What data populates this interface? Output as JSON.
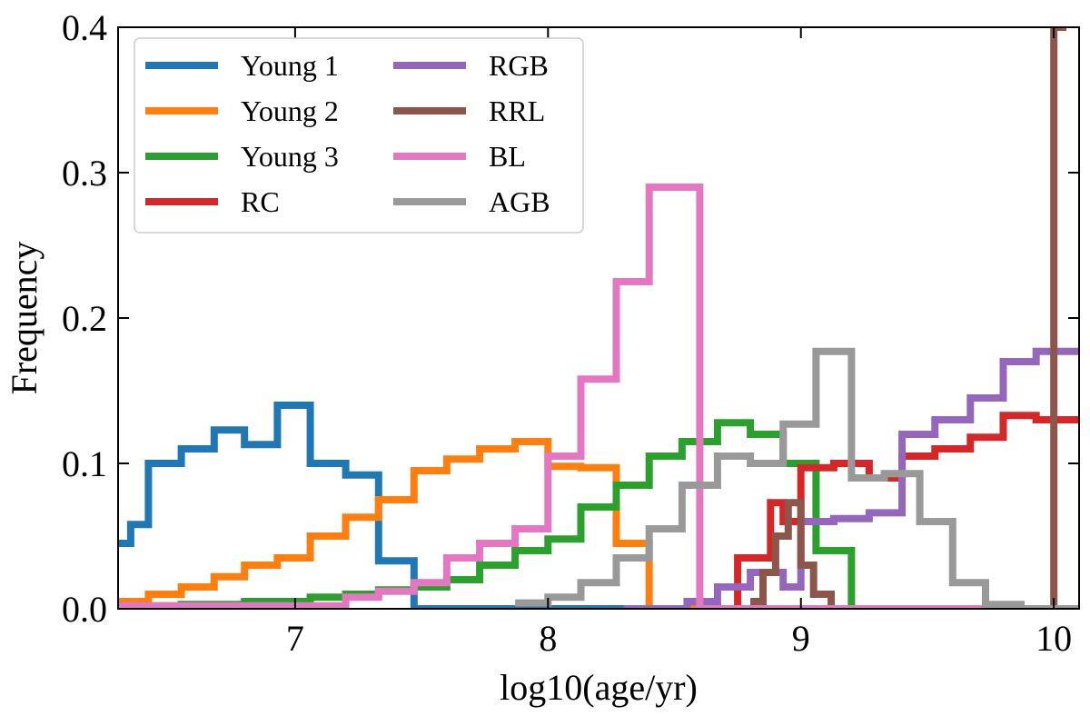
{
  "chart_data": {
    "type": "histogram-step",
    "xlabel": "log10(age/yr)",
    "ylabel": "Frequency",
    "xlim": [
      6.3,
      10.1
    ],
    "ylim": [
      0.0,
      0.4
    ],
    "xticks": [
      7,
      8,
      9,
      10
    ],
    "xtick_labels": [
      "7",
      "8",
      "9",
      "10"
    ],
    "yticks": [
      0.0,
      0.1,
      0.2,
      0.3,
      0.4
    ],
    "ytick_labels": [
      "0.0",
      "0.1",
      "0.2",
      "0.3",
      "0.4"
    ],
    "legend_position": "top-left",
    "series": [
      {
        "name": "Young 1",
        "color": "#1f77b4",
        "x": [
          6.3,
          6.35,
          6.42,
          6.55,
          6.68,
          6.8,
          6.93,
          7.06,
          7.2,
          7.33,
          7.47,
          7.6,
          7.73,
          8.6
        ],
        "y": [
          0.045,
          0.058,
          0.1,
          0.11,
          0.123,
          0.113,
          0.14,
          0.1,
          0.092,
          0.033,
          0.0,
          0.0,
          0.0
        ]
      },
      {
        "name": "Young 2",
        "color": "#ff7f0e",
        "x": [
          6.3,
          6.42,
          6.55,
          6.68,
          6.8,
          6.93,
          7.06,
          7.2,
          7.33,
          7.47,
          7.6,
          7.73,
          7.87,
          8.0,
          8.13,
          8.27,
          8.4,
          8.53,
          8.6
        ],
        "y": [
          0.005,
          0.01,
          0.015,
          0.022,
          0.03,
          0.035,
          0.05,
          0.063,
          0.075,
          0.095,
          0.103,
          0.11,
          0.115,
          0.098,
          0.097,
          0.045,
          0.0,
          0.0
        ]
      },
      {
        "name": "Young 3",
        "color": "#2ca02c",
        "x": [
          6.3,
          6.55,
          6.8,
          7.06,
          7.2,
          7.33,
          7.47,
          7.6,
          7.73,
          7.87,
          8.0,
          8.13,
          8.27,
          8.4,
          8.53,
          8.67,
          8.8,
          8.93,
          9.06,
          9.2,
          9.33,
          9.6
        ],
        "y": [
          0.002,
          0.003,
          0.005,
          0.008,
          0.01,
          0.013,
          0.015,
          0.02,
          0.03,
          0.04,
          0.048,
          0.07,
          0.085,
          0.105,
          0.115,
          0.128,
          0.12,
          0.1,
          0.04,
          0.0,
          0.0
        ]
      },
      {
        "name": "RC",
        "color": "#d62728",
        "x": [
          8.6,
          8.75,
          8.88,
          8.93,
          9.0,
          9.13,
          9.27,
          9.4,
          9.53,
          9.67,
          9.8,
          9.93,
          10.1
        ],
        "y": [
          0.0,
          0.035,
          0.073,
          0.06,
          0.097,
          0.1,
          0.09,
          0.105,
          0.11,
          0.118,
          0.133,
          0.13
        ]
      },
      {
        "name": "RGB",
        "color": "#9467bd",
        "x": [
          8.3,
          8.55,
          8.67,
          8.8,
          8.93,
          9.0,
          9.13,
          9.27,
          9.4,
          9.53,
          9.67,
          9.8,
          9.93,
          10.1
        ],
        "y": [
          0.0,
          0.005,
          0.015,
          0.025,
          0.015,
          0.06,
          0.062,
          0.066,
          0.12,
          0.13,
          0.145,
          0.17,
          0.177
        ]
      },
      {
        "name": "RRL",
        "color": "#8c564b",
        "x": [
          8.8,
          8.85,
          8.9,
          8.95,
          9.0,
          9.05,
          9.12,
          9.95,
          10.0,
          10.05
        ],
        "y": [
          0.005,
          0.025,
          0.05,
          0.073,
          0.03,
          0.01,
          0.0,
          0.0,
          0.4
        ]
      },
      {
        "name": "BL",
        "color": "#e377c2",
        "x": [
          6.3,
          7.2,
          7.33,
          7.47,
          7.6,
          7.73,
          7.87,
          8.0,
          8.13,
          8.27,
          8.4,
          8.47,
          8.6,
          10.0
        ],
        "y": [
          0.002,
          0.008,
          0.012,
          0.018,
          0.035,
          0.045,
          0.055,
          0.105,
          0.158,
          0.225,
          0.29,
          0.29,
          0.0
        ]
      },
      {
        "name": "AGB",
        "color": "#999999",
        "x": [
          7.87,
          8.0,
          8.13,
          8.27,
          8.4,
          8.53,
          8.67,
          8.8,
          8.93,
          9.06,
          9.2,
          9.33,
          9.47,
          9.6,
          9.73,
          9.87,
          9.98,
          10.1
        ],
        "y": [
          0.004,
          0.008,
          0.018,
          0.035,
          0.055,
          0.085,
          0.105,
          0.1,
          0.127,
          0.177,
          0.09,
          0.093,
          0.06,
          0.018,
          0.003,
          0.0,
          0.0
        ]
      }
    ]
  }
}
